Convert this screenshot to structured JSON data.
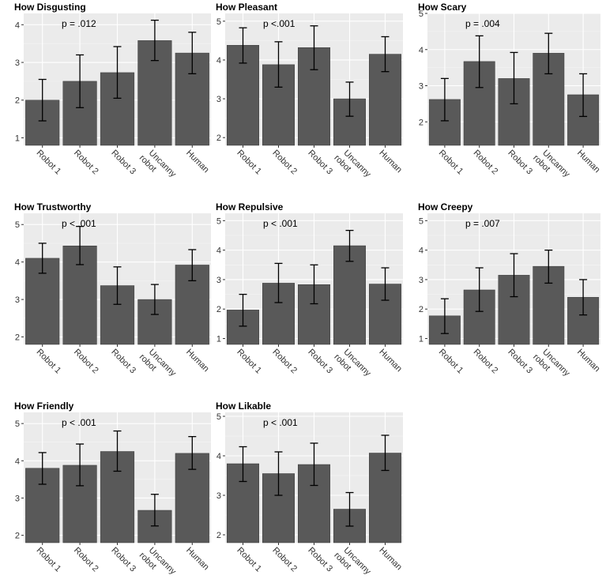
{
  "chart_data": [
    {
      "type": "bar",
      "title": "How Disgusting",
      "annotation": "p = .012",
      "categories": [
        "Robot 1",
        "Robot 2",
        "Robot 3",
        "Uncanny robot",
        "Human"
      ],
      "values": [
        2.0,
        2.5,
        2.73,
        3.58,
        3.25
      ],
      "error_low": [
        1.45,
        1.8,
        2.05,
        3.05,
        2.7
      ],
      "error_high": [
        2.55,
        3.2,
        3.42,
        4.12,
        3.8
      ],
      "ylim": [
        0.8,
        4.3
      ],
      "yticks": [
        1,
        2,
        3,
        4
      ],
      "xlabel": "",
      "ylabel": "",
      "grid": true
    },
    {
      "type": "bar",
      "title": "How Pleasant",
      "annotation": "p <.001",
      "categories": [
        "Robot 1",
        "Robot 2",
        "Robot 3",
        "Uncanny robot",
        "Human"
      ],
      "values": [
        4.38,
        3.88,
        4.32,
        3.0,
        4.15
      ],
      "error_low": [
        3.92,
        3.3,
        3.75,
        2.55,
        3.7
      ],
      "error_high": [
        4.83,
        4.47,
        4.88,
        3.43,
        4.6
      ],
      "ylim": [
        1.8,
        5.2
      ],
      "yticks": [
        2,
        3,
        4,
        5
      ],
      "xlabel": "",
      "ylabel": "",
      "grid": true
    },
    {
      "type": "bar",
      "title": "How Scary",
      "annotation": "p = .004",
      "categories": [
        "Robot 1",
        "Robot 2",
        "Robot 3",
        "Uncanny robot",
        "Human"
      ],
      "values": [
        2.62,
        3.67,
        3.2,
        3.9,
        2.75
      ],
      "error_low": [
        2.03,
        2.95,
        2.5,
        3.33,
        2.15
      ],
      "error_high": [
        3.2,
        4.38,
        3.92,
        4.45,
        3.33
      ],
      "ylim": [
        1.35,
        5.0
      ],
      "yticks": [
        2,
        3,
        4,
        5
      ],
      "xlabel": "",
      "ylabel": "",
      "grid": true
    },
    {
      "type": "bar",
      "title": "How Trustworthy",
      "annotation": "p < .001",
      "categories": [
        "Robot 1",
        "Robot 2",
        "Robot 3",
        "Uncanny robot",
        "Human"
      ],
      "values": [
        4.1,
        4.43,
        3.37,
        3.0,
        3.92
      ],
      "error_low": [
        3.7,
        3.93,
        2.87,
        2.6,
        3.5
      ],
      "error_high": [
        4.5,
        4.95,
        3.87,
        3.4,
        4.33
      ],
      "ylim": [
        1.8,
        5.3
      ],
      "yticks": [
        2,
        3,
        4,
        5
      ],
      "xlabel": "",
      "ylabel": "",
      "grid": true
    },
    {
      "type": "bar",
      "title": "How Repulsive",
      "annotation": "p < .001",
      "categories": [
        "Robot 1",
        "Robot 2",
        "Robot 3",
        "Uncanny robot",
        "Human"
      ],
      "values": [
        1.97,
        2.88,
        2.83,
        4.15,
        2.85
      ],
      "error_low": [
        1.42,
        2.22,
        2.18,
        3.62,
        2.3
      ],
      "error_high": [
        2.5,
        3.55,
        3.5,
        4.67,
        3.4
      ],
      "ylim": [
        0.8,
        5.25
      ],
      "yticks": [
        1,
        2,
        3,
        4,
        5
      ],
      "xlabel": "",
      "ylabel": "",
      "grid": true
    },
    {
      "type": "bar",
      "title": "How Creepy",
      "annotation": "p = .007",
      "categories": [
        "Robot 1",
        "Robot 2",
        "Robot 3",
        "Uncanny robot",
        "Human"
      ],
      "values": [
        1.77,
        2.65,
        3.15,
        3.45,
        2.4
      ],
      "error_low": [
        1.17,
        1.92,
        2.42,
        2.88,
        1.8
      ],
      "error_high": [
        2.35,
        3.4,
        3.88,
        4.0,
        3.0
      ],
      "ylim": [
        0.8,
        5.25
      ],
      "yticks": [
        1,
        2,
        3,
        4,
        5
      ],
      "xlabel": "",
      "ylabel": "",
      "grid": true
    },
    {
      "type": "bar",
      "title": "How Friendly",
      "annotation": "p < .001",
      "categories": [
        "Robot 1",
        "Robot 2",
        "Robot 3",
        "Uncanny robot",
        "Human"
      ],
      "values": [
        3.8,
        3.88,
        4.25,
        2.67,
        4.2
      ],
      "error_low": [
        3.37,
        3.33,
        3.72,
        2.25,
        3.77
      ],
      "error_high": [
        4.22,
        4.45,
        4.8,
        3.1,
        4.65
      ],
      "ylim": [
        1.8,
        5.3
      ],
      "yticks": [
        2,
        3,
        4,
        5
      ],
      "xlabel": "",
      "ylabel": "",
      "grid": true
    },
    {
      "type": "bar",
      "title": "How Likable",
      "annotation": "p < .001",
      "categories": [
        "Robot 1",
        "Robot 2",
        "Robot 3",
        "Uncanny robot",
        "Human"
      ],
      "values": [
        3.8,
        3.55,
        3.78,
        2.65,
        4.07
      ],
      "error_low": [
        3.35,
        3.0,
        3.25,
        2.22,
        3.63
      ],
      "error_high": [
        4.23,
        4.1,
        4.32,
        3.07,
        4.52
      ],
      "ylim": [
        1.8,
        5.1
      ],
      "yticks": [
        2,
        3,
        4,
        5
      ],
      "xlabel": "",
      "ylabel": "",
      "grid": true
    }
  ]
}
